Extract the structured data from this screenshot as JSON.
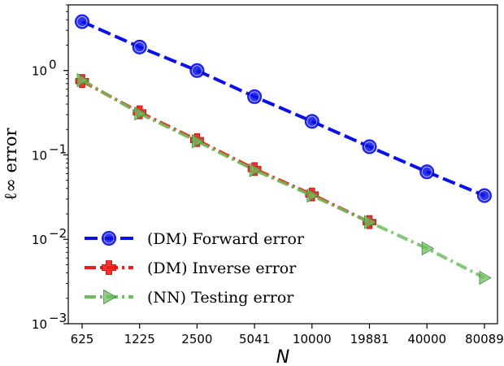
{
  "chart_data": {
    "type": "line",
    "title": "",
    "xlabel": "N",
    "ylabel": "ℓ∞ error",
    "yscale": "log",
    "ylim": [
      0.001,
      6
    ],
    "yticks": [
      {
        "value": 1,
        "base": "10",
        "exp": "0"
      },
      {
        "value": 0.1,
        "base": "10",
        "exp": "−1"
      },
      {
        "value": 0.01,
        "base": "10",
        "exp": "−2"
      },
      {
        "value": 0.001,
        "base": "10",
        "exp": "−3"
      }
    ],
    "categories": [
      "625",
      "1225",
      "2500",
      "5041",
      "10000",
      "19881",
      "40000",
      "80089"
    ],
    "grid": false,
    "legend_position": "lower-left",
    "series": [
      {
        "name": "(DM) Forward error",
        "color": "#0a10e8",
        "marker": "circle",
        "line_style": "dashed",
        "values": [
          3.8,
          1.9,
          1.0,
          0.49,
          0.25,
          0.125,
          0.063,
          0.033
        ]
      },
      {
        "name": "(DM) Inverse error",
        "color": "#f21b16",
        "marker": "plus",
        "line_style": "dashdot",
        "values": [
          0.75,
          0.32,
          0.15,
          0.068,
          0.034,
          0.016,
          null,
          null
        ]
      },
      {
        "name": "(NN) Testing error",
        "color": "#6cbf5e",
        "marker": "triangle-right",
        "line_style": "dashdot",
        "values": [
          0.77,
          0.31,
          0.145,
          0.066,
          0.033,
          0.016,
          0.0078,
          0.0035
        ]
      }
    ]
  }
}
